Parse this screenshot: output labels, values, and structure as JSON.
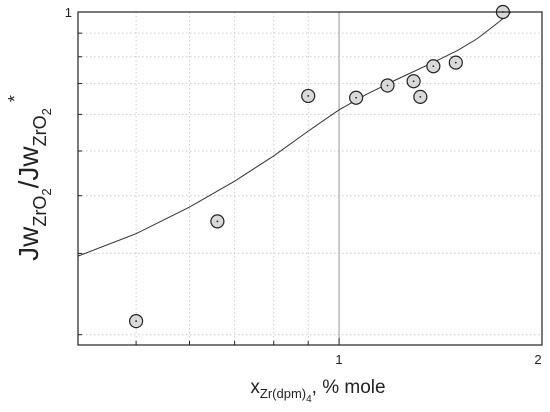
{
  "chart_data": {
    "type": "scatter",
    "title": "",
    "x_scale": "log",
    "y_scale": "log",
    "xlim": [
      0.41,
      2.0
    ],
    "ylim": [
      0.19,
      1.0
    ],
    "grid": true,
    "grid_style": "dotted",
    "x_ticks": [
      1,
      2
    ],
    "x_tick_labels": [
      "1",
      "2"
    ],
    "y_ticks": [
      1
    ],
    "y_tick_labels": [
      "1"
    ],
    "xlabel": {
      "base": "x",
      "subscript": "Zr(dpm)",
      "sub_subscript": "4",
      "suffix": ", % mole"
    },
    "ylabel": {
      "part1": "Jw",
      "part1_sub": "ZrO",
      "part1_subsub": "2",
      "slash": "/",
      "part2": "Jw",
      "part2_sub": "ZrO",
      "part2_subsub": "2",
      "sup": "*"
    },
    "reference_line_x": 1.0,
    "series": [
      {
        "kind": "points",
        "marker": "circle",
        "fill": "#d9d9d9",
        "stroke": "#222222",
        "x": [
          0.5,
          0.66,
          0.9,
          1.06,
          1.18,
          1.29,
          1.32,
          1.38,
          1.49,
          1.75
        ],
        "y": [
          0.214,
          0.352,
          0.658,
          0.652,
          0.693,
          0.708,
          0.655,
          0.763,
          0.777,
          1.0
        ]
      },
      {
        "kind": "fit",
        "color": "#333333",
        "x": [
          0.41,
          0.5,
          0.6,
          0.7,
          0.8,
          0.9,
          1.0,
          1.1,
          1.2,
          1.3,
          1.4,
          1.5,
          1.6,
          1.7,
          1.8
        ],
        "y": [
          0.296,
          0.331,
          0.378,
          0.43,
          0.488,
          0.552,
          0.614,
          0.664,
          0.707,
          0.747,
          0.786,
          0.826,
          0.874,
          0.935,
          1.0
        ]
      }
    ],
    "colors": {
      "axis": "#222222",
      "grid": "#c8ccd4",
      "reference_line": "#9a9a9a"
    }
  }
}
